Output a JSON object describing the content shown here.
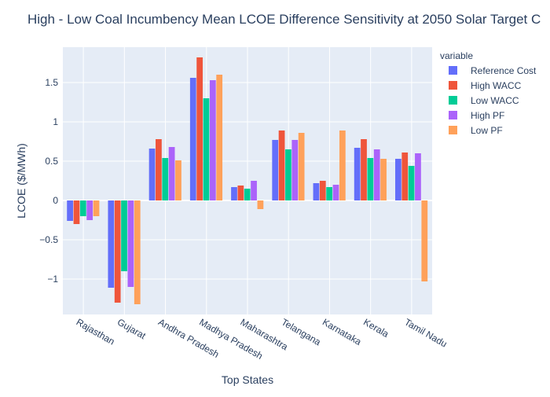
{
  "chart_data": {
    "type": "bar",
    "title": "High - Low Coal Incumbency Mean LCOE Difference Sensitivity at 2050 Solar Target C",
    "xlabel": "Top States",
    "ylabel": "LCOE ($/MWh)",
    "ylim": [
      -1.45,
      1.95
    ],
    "yticks": [
      {
        "value": -1,
        "label": "−1"
      },
      {
        "value": -0.5,
        "label": "−0.5"
      },
      {
        "value": 0,
        "label": "0"
      },
      {
        "value": 0.5,
        "label": "0.5"
      },
      {
        "value": 1,
        "label": "1"
      },
      {
        "value": 1.5,
        "label": "1.5"
      }
    ],
    "grid": true,
    "legend": {
      "title": "variable",
      "placement": "top-right"
    },
    "categories": [
      "Rajasthan",
      "Gujarat",
      "Andhra Pradesh",
      "Madhya Pradesh",
      "Maharashtra",
      "Telangana",
      "Karnataka",
      "Kerala",
      "Tamil Nadu"
    ],
    "series": [
      {
        "name": "Reference Cost",
        "color": "#636efa",
        "values": [
          -0.26,
          -1.11,
          0.66,
          1.56,
          0.17,
          0.77,
          0.22,
          0.67,
          0.53
        ]
      },
      {
        "name": "High WACC",
        "color": "#ef553b",
        "values": [
          -0.3,
          -1.3,
          0.78,
          1.82,
          0.19,
          0.89,
          0.25,
          0.78,
          0.61
        ]
      },
      {
        "name": "Low WACC",
        "color": "#00cc96",
        "values": [
          -0.2,
          -0.9,
          0.54,
          1.3,
          0.15,
          0.65,
          0.17,
          0.54,
          0.44
        ]
      },
      {
        "name": "High PF",
        "color": "#ab63fa",
        "values": [
          -0.25,
          -1.1,
          0.68,
          1.53,
          0.25,
          0.77,
          0.2,
          0.65,
          0.6
        ]
      },
      {
        "name": "Low PF",
        "color": "#ffa15a",
        "values": [
          -0.2,
          -1.32,
          0.51,
          1.6,
          -0.11,
          0.86,
          0.89,
          0.53,
          -1.03
        ]
      }
    ]
  }
}
